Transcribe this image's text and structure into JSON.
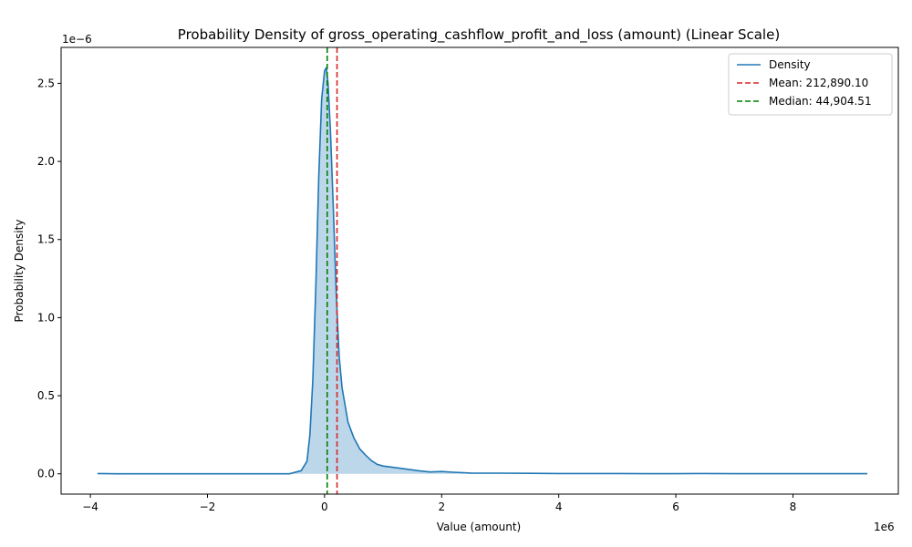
{
  "chart_data": {
    "type": "line",
    "title": "Probability Density of gross_operating_cashflow_profit_and_loss (amount) (Linear Scale)",
    "xlabel": "Value (amount)",
    "ylabel": "Probability Density",
    "x_scale_label": "1e6",
    "y_scale_label": "1e−6",
    "xlim": [
      -4.5,
      9.8
    ],
    "ylim": [
      -0.13,
      2.73
    ],
    "x_ticks": [
      -4,
      -2,
      0,
      2,
      4,
      6,
      8
    ],
    "x_tick_labels": [
      "−4",
      "−2",
      "0",
      "2",
      "4",
      "6",
      "8"
    ],
    "y_ticks": [
      0.0,
      0.5,
      1.0,
      1.5,
      2.0,
      2.5
    ],
    "y_tick_labels": [
      "0.0",
      "0.5",
      "1.0",
      "1.5",
      "2.0",
      "2.5"
    ],
    "grid": false,
    "legend_position": "top-right",
    "legend": [
      {
        "label": "Density",
        "color": "#1f77b4",
        "style": "solid"
      },
      {
        "label": "Mean: 212,890.10",
        "color": "#d62728",
        "style": "dashed"
      },
      {
        "label": "Median: 44,904.51",
        "color": "#008000",
        "style": "dashed"
      }
    ],
    "series": [
      {
        "name": "Density",
        "color": "#1f77b4",
        "fill": "#bcd6ea",
        "x": [
          -3.88,
          -3.5,
          -3.0,
          -2.0,
          -1.0,
          -0.6,
          -0.4,
          -0.3,
          -0.25,
          -0.2,
          -0.15,
          -0.1,
          -0.05,
          0.0,
          0.03,
          0.06,
          0.1,
          0.15,
          0.2,
          0.25,
          0.3,
          0.4,
          0.5,
          0.6,
          0.7,
          0.8,
          0.9,
          1.0,
          1.3,
          1.6,
          1.8,
          2.0,
          2.2,
          2.5,
          3.0,
          3.5,
          4.0,
          4.5,
          5.0,
          5.5,
          6.0,
          6.5,
          7.0,
          7.5,
          8.0,
          8.5,
          9.27
        ],
        "y": [
          0.002,
          0.0,
          0.0,
          0.0,
          0.0,
          0.0,
          0.02,
          0.08,
          0.25,
          0.6,
          1.2,
          1.9,
          2.4,
          2.58,
          2.6,
          2.5,
          2.2,
          1.7,
          1.15,
          0.75,
          0.55,
          0.33,
          0.23,
          0.16,
          0.12,
          0.085,
          0.06,
          0.05,
          0.035,
          0.02,
          0.012,
          0.015,
          0.01,
          0.005,
          0.004,
          0.003,
          0.002,
          0.002,
          0.002,
          0.001,
          0.001,
          0.002,
          0.001,
          0.001,
          0.001,
          0.001,
          0.001
        ]
      }
    ],
    "reference_lines": [
      {
        "name": "Mean",
        "x": 0.2129,
        "color": "#d62728"
      },
      {
        "name": "Median",
        "x": 0.0449,
        "color": "#008000"
      }
    ]
  }
}
